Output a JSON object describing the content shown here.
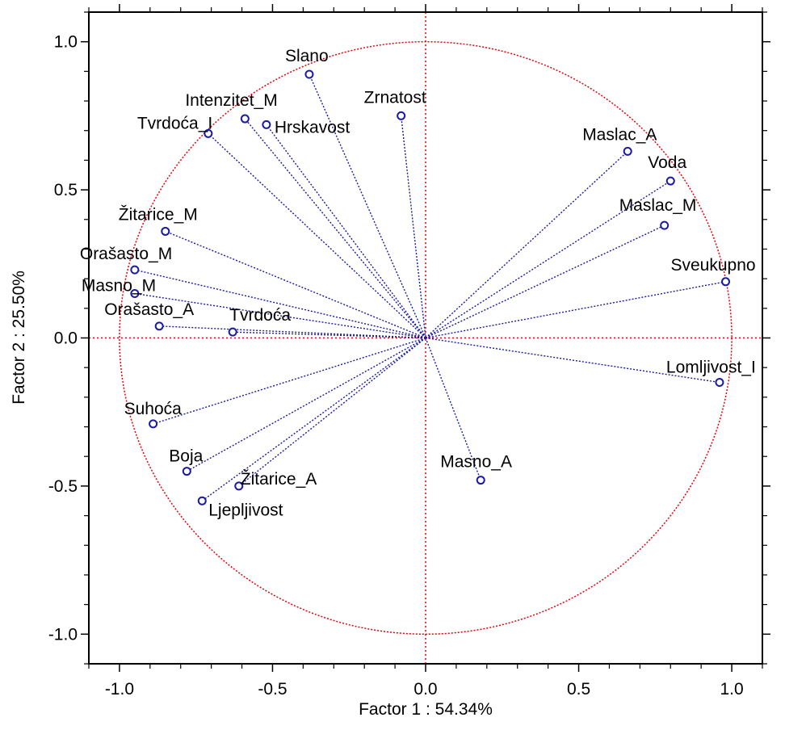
{
  "chart_data": {
    "type": "scatter",
    "title": "",
    "xlabel": "Factor 1 : 54.34%",
    "ylabel": "Factor 2 : 25.50%",
    "xlim": [
      -1.1,
      1.1
    ],
    "ylim": [
      -1.1,
      1.1
    ],
    "x_ticks": [
      -1.0,
      -0.5,
      0.0,
      0.5,
      1.0
    ],
    "y_ticks": [
      -1.0,
      -0.5,
      0.0,
      0.5,
      1.0
    ],
    "x_tick_labels": [
      "-1.0",
      "-0.5",
      "0.0",
      "0.5",
      "1.0"
    ],
    "y_tick_labels": [
      "-1.0",
      "-0.5",
      "0.0",
      "0.5",
      "1.0"
    ],
    "grid": false,
    "unit_circle": true,
    "reference_lines": [
      0,
      0
    ],
    "colors": {
      "circle": "#e8000b",
      "vectors": "#1a1aa6",
      "points": "#1a1aa6"
    },
    "points": [
      {
        "label": "Slano",
        "x": -0.38,
        "y": 0.89
      },
      {
        "label": "Zrnatost",
        "x": -0.08,
        "y": 0.75
      },
      {
        "label": "Intenzitet_M",
        "x": -0.59,
        "y": 0.74
      },
      {
        "label": "Hrskavost",
        "x": -0.52,
        "y": 0.72
      },
      {
        "label": "Tvrdoća_I",
        "x": -0.71,
        "y": 0.69
      },
      {
        "label": "Maslac_A",
        "x": 0.66,
        "y": 0.63
      },
      {
        "label": "Voda",
        "x": 0.8,
        "y": 0.53
      },
      {
        "label": "Maslac_M",
        "x": 0.78,
        "y": 0.38
      },
      {
        "label": "Žitarice_M",
        "x": -0.85,
        "y": 0.36
      },
      {
        "label": "Orašasto_M",
        "x": -0.95,
        "y": 0.23
      },
      {
        "label": "Masno_M",
        "x": -0.95,
        "y": 0.15
      },
      {
        "label": "Sveukupno",
        "x": 0.98,
        "y": 0.19
      },
      {
        "label": "Orašasto_A",
        "x": -0.87,
        "y": 0.04
      },
      {
        "label": "Tvrdoća",
        "x": -0.63,
        "y": 0.02
      },
      {
        "label": "Lomljivost_I",
        "x": 0.96,
        "y": -0.15
      },
      {
        "label": "Suhoća",
        "x": -0.89,
        "y": -0.29
      },
      {
        "label": "Boja",
        "x": -0.78,
        "y": -0.45
      },
      {
        "label": "Žitarice_A",
        "x": -0.61,
        "y": -0.5
      },
      {
        "label": "Masno_A",
        "x": 0.18,
        "y": -0.48
      },
      {
        "label": "Ljepljivost",
        "x": -0.73,
        "y": -0.55
      }
    ]
  }
}
